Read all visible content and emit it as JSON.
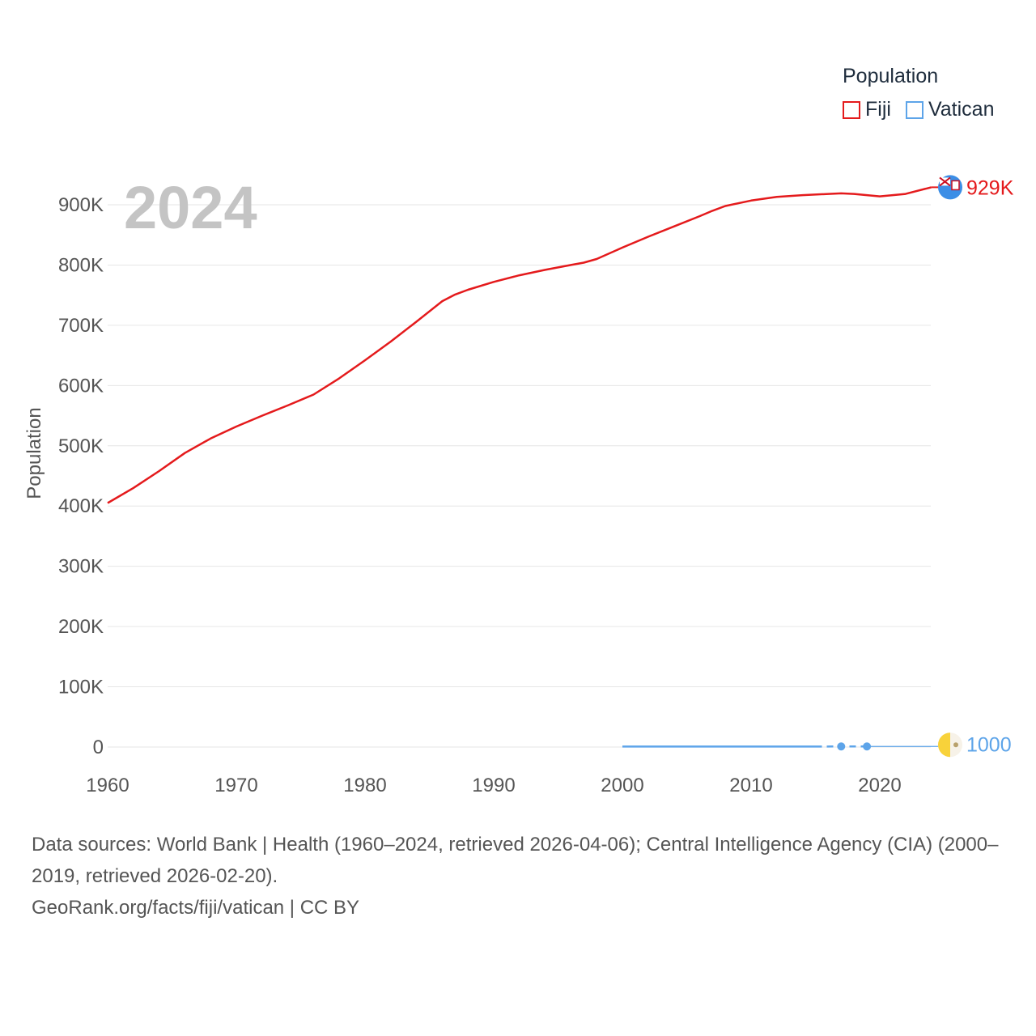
{
  "chart_data": {
    "type": "line",
    "big_year_label": "2024",
    "ylabel": "Population",
    "xlim": [
      1960,
      2024
    ],
    "ylim": [
      0,
      900000
    ],
    "x_ticks": [
      1960,
      1970,
      1980,
      1990,
      2000,
      2010,
      2020
    ],
    "x_tick_labels": [
      "1960",
      "1970",
      "1980",
      "1990",
      "2000",
      "2010",
      "2020"
    ],
    "y_ticks": [
      0,
      100000,
      200000,
      300000,
      400000,
      500000,
      600000,
      700000,
      800000,
      900000
    ],
    "y_tick_labels": [
      "0",
      "100K",
      "200K",
      "300K",
      "400K",
      "500K",
      "600K",
      "700K",
      "800K",
      "900K"
    ],
    "legend_title": "Population",
    "series": [
      {
        "name": "Fiji",
        "color": "#e41a1c",
        "end_label": "929K",
        "flag_icon": "fiji-flag-icon",
        "x": [
          1960,
          1962,
          1964,
          1966,
          1968,
          1970,
          1972,
          1974,
          1976,
          1978,
          1980,
          1982,
          1984,
          1986,
          1987,
          1988,
          1990,
          1992,
          1994,
          1996,
          1997,
          1998,
          2000,
          2002,
          2004,
          2006,
          2007,
          2008,
          2010,
          2012,
          2014,
          2016,
          2017,
          2018,
          2019,
          2020,
          2022,
          2024
        ],
        "values": [
          405000,
          430000,
          458000,
          488000,
          512000,
          532000,
          550000,
          567000,
          585000,
          612000,
          642000,
          673000,
          706000,
          740000,
          751000,
          759000,
          772000,
          783000,
          792000,
          800000,
          804000,
          810000,
          829000,
          847000,
          864000,
          881000,
          890000,
          898000,
          907000,
          913000,
          916000,
          918000,
          919000,
          918000,
          916000,
          914000,
          918000,
          929000
        ]
      },
      {
        "name": "Vatican",
        "color": "#5da4e9",
        "end_label": "1000",
        "flag_icon": "vatican-flag-icon",
        "x": [
          2000,
          2005,
          2010,
          2015,
          2017,
          2019,
          2024
        ],
        "values": [
          880,
          880,
          830,
          840,
          1000,
          1000,
          1000
        ],
        "dashed_x_range": [
          2015,
          2019
        ],
        "points_x": [
          2017,
          2019
        ]
      }
    ]
  },
  "footer": {
    "sources": "Data sources: World Bank | Health (1960–2024, retrieved 2026-04-06); Central Intelligence Agency (CIA) (2000–2019, retrieved 2026-02-20).",
    "credit": "GeoRank.org/facts/fiji/vatican | CC BY"
  }
}
